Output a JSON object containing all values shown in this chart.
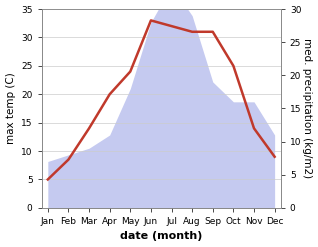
{
  "months": [
    "Jan",
    "Feb",
    "Mar",
    "Apr",
    "May",
    "Jun",
    "Jul",
    "Aug",
    "Sep",
    "Oct",
    "Nov",
    "Dec"
  ],
  "month_indices": [
    0,
    1,
    2,
    3,
    4,
    5,
    6,
    7,
    8,
    9,
    10,
    11
  ],
  "temperature": [
    5.0,
    8.5,
    14.0,
    20.0,
    24.0,
    33.0,
    32.0,
    31.0,
    31.0,
    25.0,
    14.0,
    9.0
  ],
  "precipitation": [
    7.0,
    8.0,
    9.0,
    11.0,
    18.0,
    28.0,
    33.5,
    29.0,
    19.0,
    16.0,
    16.0,
    11.0
  ],
  "temp_color": "#c0392b",
  "precip_fill_color": "#c5caf0",
  "temp_ylim": [
    0,
    35
  ],
  "precip_ylim": [
    0,
    30
  ],
  "temp_yticks": [
    0,
    5,
    10,
    15,
    20,
    25,
    30,
    35
  ],
  "precip_yticks": [
    0,
    5,
    10,
    15,
    20,
    25,
    30
  ],
  "xlabel": "date (month)",
  "ylabel_left": "max temp (C)",
  "ylabel_right": "med. precipitation (kg/m2)",
  "line_width": 1.8,
  "background_color": "#ffffff",
  "axis_color": "#888888",
  "grid_color": "#cccccc",
  "tick_fontsize": 6.5,
  "label_fontsize": 7.5,
  "xlabel_fontsize": 8.0
}
